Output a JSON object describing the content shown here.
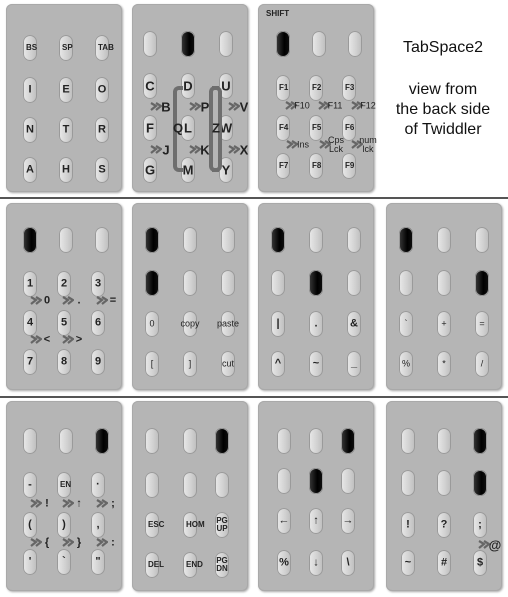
{
  "title": "TabSpace2",
  "subtitle": [
    "view from",
    "the back side",
    "of Twiddler"
  ],
  "shift_label": "SHIFT",
  "p1": {
    "labels": [
      "BS",
      "SP",
      "TAB",
      "I",
      "E",
      "O",
      "N",
      "T",
      "R",
      "A",
      "H",
      "S"
    ]
  },
  "p2": {
    "labels": [
      "C",
      "D",
      "U",
      "F",
      "L",
      "W",
      "G",
      "M",
      "Y"
    ],
    "chords": [
      "B",
      "P",
      "V",
      "Q",
      "Z",
      "J",
      "K",
      "X"
    ]
  },
  "p3": {
    "labels": [
      "F1",
      "F2",
      "F3",
      "F4",
      "F5",
      "F6",
      "F7",
      "F8",
      "F9"
    ],
    "chords": [
      "F10",
      "F11",
      "F12",
      "Ins",
      "Cps Lck",
      "num lck"
    ]
  },
  "p4": {
    "labels": [
      "1",
      "2",
      "3",
      "4",
      "5",
      "6",
      "7",
      "8",
      "9"
    ],
    "chords": [
      "0",
      ".",
      "=",
      "<",
      ">"
    ]
  },
  "p5": {
    "labels": [
      "0",
      "copy",
      "paste",
      "[",
      "]",
      "cut"
    ]
  },
  "p6": {
    "labels": [
      "|",
      ".",
      "&",
      "^",
      "~",
      "_"
    ]
  },
  "p7": {
    "labels": [
      "`",
      "+",
      "=",
      "%",
      "*",
      "/"
    ]
  },
  "p8": {
    "labels": [
      "-",
      "EN",
      "·",
      "(",
      ")",
      ",",
      "'",
      "`",
      "\""
    ],
    "chords": [
      "!",
      "↑",
      ";",
      "{",
      "}",
      ":"
    ]
  },
  "p9": {
    "labels": [
      "ESC",
      "HOM",
      "PGUP",
      "DEL",
      "END",
      "PGDN"
    ]
  },
  "p10": {
    "labels": [
      "←",
      "↑",
      "→",
      "%",
      "↓",
      "\\"
    ]
  },
  "p11": {
    "labels": [
      "!",
      "?",
      ";",
      "~",
      "#",
      "$"
    ],
    "chords": [
      "@"
    ]
  }
}
